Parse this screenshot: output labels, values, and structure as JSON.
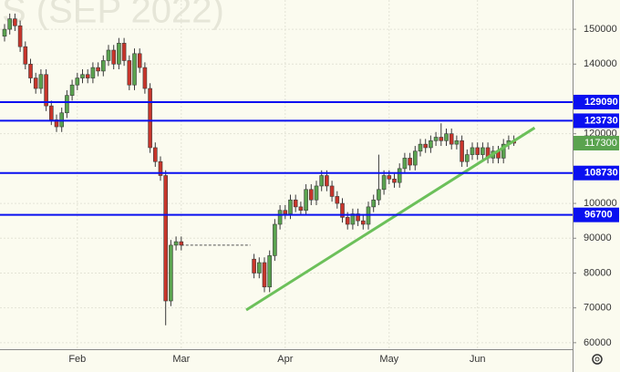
{
  "chart_data": {
    "type": "candlestick",
    "watermark": "S (SEP 2022)",
    "categories": [
      null,
      null,
      null,
      null,
      null,
      null,
      null,
      null,
      null,
      null,
      null,
      null,
      null,
      null,
      "Feb",
      null,
      null,
      null,
      null,
      null,
      null,
      null,
      null,
      null,
      null,
      null,
      null,
      null,
      null,
      null,
      null,
      null,
      null,
      null,
      "Mar",
      null,
      null,
      null,
      null,
      null,
      null,
      null,
      null,
      null,
      null,
      null,
      null,
      null,
      null,
      null,
      null,
      null,
      null,
      null,
      "Apr",
      null,
      null,
      null,
      null,
      null,
      null,
      null,
      null,
      null,
      null,
      null,
      null,
      null,
      null,
      null,
      null,
      null,
      null,
      null,
      "May",
      null,
      null,
      null,
      null,
      null,
      null,
      null,
      null,
      null,
      null,
      null,
      null,
      null,
      null,
      null,
      null,
      "Jun",
      null,
      null,
      null,
      null,
      null,
      null,
      null
    ],
    "open": [
      148000,
      150000,
      153000,
      151000,
      145000,
      140000,
      136000,
      133000,
      137000,
      128000,
      124000,
      122000,
      126000,
      131000,
      134000,
      136000,
      137000,
      136000,
      139000,
      138000,
      141000,
      144000,
      140000,
      146000,
      141000,
      134000,
      143000,
      139000,
      133000,
      116000,
      112000,
      108000,
      72000,
      88000,
      89000,
      null,
      null,
      null,
      null,
      null,
      null,
      null,
      null,
      null,
      null,
      null,
      null,
      null,
      84000,
      80000,
      83000,
      76000,
      85000,
      94000,
      98000,
      97000,
      101000,
      99000,
      98000,
      104000,
      101000,
      105000,
      108000,
      105000,
      102000,
      100000,
      96000,
      94000,
      97000,
      95000,
      94000,
      99000,
      101000,
      104000,
      108000,
      107000,
      106000,
      110000,
      113000,
      111000,
      115000,
      117000,
      116000,
      118000,
      119000,
      118000,
      120000,
      117000,
      118000,
      112000,
      114000,
      116000,
      114000,
      116000,
      113000,
      115000,
      113000,
      117000,
      118000
    ],
    "high": [
      151500,
      154500,
      154500,
      152500,
      146500,
      141500,
      137500,
      138500,
      138500,
      129500,
      125500,
      127500,
      132500,
      135500,
      137500,
      138500,
      138500,
      140500,
      140500,
      142500,
      145500,
      145500,
      147500,
      147500,
      142500,
      144500,
      144500,
      140500,
      134500,
      117500,
      113500,
      109500,
      89500,
      90500,
      90500,
      null,
      null,
      null,
      null,
      null,
      null,
      null,
      null,
      null,
      null,
      null,
      null,
      null,
      85500,
      84500,
      84500,
      86500,
      95500,
      99500,
      99500,
      102500,
      102500,
      100500,
      105500,
      105500,
      106500,
      109500,
      109500,
      106500,
      103500,
      101500,
      97500,
      98500,
      98500,
      96500,
      100500,
      102500,
      114000,
      109500,
      109500,
      108500,
      111500,
      114500,
      114500,
      116500,
      118500,
      118500,
      119500,
      120500,
      123000,
      121500,
      121500,
      119500,
      119500,
      115500,
      117500,
      117500,
      117500,
      117500,
      116500,
      116500,
      118500,
      119500,
      119500
    ],
    "low": [
      146500,
      148500,
      149500,
      143500,
      138500,
      134500,
      131500,
      131500,
      126500,
      122500,
      120500,
      120500,
      124500,
      129500,
      132500,
      134500,
      134500,
      134500,
      136500,
      136500,
      139500,
      138500,
      138500,
      139500,
      132500,
      132500,
      137500,
      131500,
      114500,
      110500,
      106500,
      65000,
      70500,
      86500,
      86500,
      null,
      null,
      null,
      null,
      null,
      null,
      null,
      null,
      null,
      null,
      null,
      null,
      null,
      78500,
      78500,
      74500,
      74500,
      83500,
      92500,
      95500,
      95500,
      97500,
      96500,
      96500,
      99500,
      99500,
      103500,
      103500,
      100500,
      98500,
      94500,
      92500,
      92500,
      93500,
      92500,
      92500,
      97500,
      99500,
      102500,
      105500,
      104500,
      104500,
      108500,
      109500,
      109500,
      113500,
      114500,
      114500,
      116500,
      116500,
      116500,
      115500,
      115500,
      110500,
      110500,
      112500,
      112500,
      112500,
      111500,
      111500,
      111500,
      111500,
      115500,
      116500
    ],
    "close": [
      150000,
      153000,
      151000,
      145000,
      140000,
      136000,
      133000,
      137000,
      128000,
      124000,
      122000,
      126000,
      131000,
      134000,
      136000,
      137000,
      136000,
      139000,
      138000,
      141000,
      144000,
      140000,
      146000,
      141000,
      134000,
      143000,
      139000,
      133000,
      116000,
      112000,
      108000,
      72000,
      88000,
      89000,
      88000,
      null,
      null,
      null,
      null,
      null,
      null,
      null,
      null,
      null,
      null,
      null,
      null,
      null,
      80000,
      83000,
      76000,
      85000,
      94000,
      98000,
      97000,
      101000,
      99000,
      98000,
      104000,
      101000,
      105000,
      108000,
      105000,
      102000,
      100000,
      96000,
      94000,
      97000,
      95000,
      94000,
      99000,
      101000,
      104000,
      108000,
      107000,
      106000,
      110000,
      113000,
      111000,
      115000,
      117000,
      116000,
      118000,
      119000,
      118000,
      120000,
      117000,
      118000,
      112000,
      114000,
      116000,
      114000,
      116000,
      113000,
      115000,
      113000,
      117000,
      118000,
      117300
    ],
    "up_color": "#5aa34f",
    "down_color": "#c8352b",
    "ylim": [
      56300,
      158400
    ],
    "yticks": [
      60000,
      70000,
      80000,
      90000,
      100000,
      120000,
      140000,
      150000
    ],
    "grid": true,
    "levels": [
      129090,
      123730,
      108730,
      96700
    ],
    "level_color": "#0a10f0",
    "last_price": 117300,
    "last_color": "#5aa34f",
    "close_line": 88000,
    "trendline": {
      "x": [
        46.5,
        102
      ],
      "values": [
        69400,
        121700
      ],
      "color": "#6cc05a"
    }
  }
}
